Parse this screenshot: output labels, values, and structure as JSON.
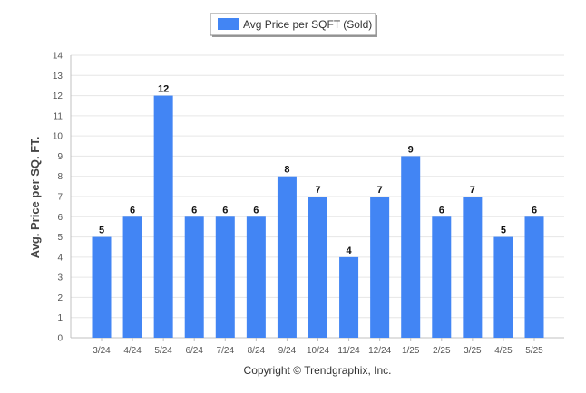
{
  "legend": {
    "label": "Avg Price per SQFT (Sold)"
  },
  "footer": {
    "copyright": "Copyright © Trendgraphix, Inc."
  },
  "colors": {
    "bar": "#4285f4",
    "grid": "#e6e6e6",
    "text": "#333333"
  },
  "chart_data": {
    "type": "bar",
    "title": "",
    "xlabel": "",
    "ylabel": "Avg. Price per SQ. FT.",
    "categories": [
      "3/24",
      "4/24",
      "5/24",
      "6/24",
      "7/24",
      "8/24",
      "9/24",
      "10/24",
      "11/24",
      "12/24",
      "1/25",
      "2/25",
      "3/25",
      "4/25",
      "5/25"
    ],
    "series": [
      {
        "name": "Avg Price per SQFT (Sold)",
        "values": [
          5,
          6,
          12,
          6,
          6,
          6,
          8,
          7,
          4,
          7,
          9,
          6,
          7,
          5,
          6
        ]
      }
    ],
    "ylim": [
      0,
      14
    ],
    "yticks": [
      0,
      1,
      2,
      3,
      4,
      5,
      6,
      7,
      8,
      9,
      10,
      11,
      12,
      13,
      14
    ],
    "grid": true,
    "legend_position": "top-center"
  }
}
